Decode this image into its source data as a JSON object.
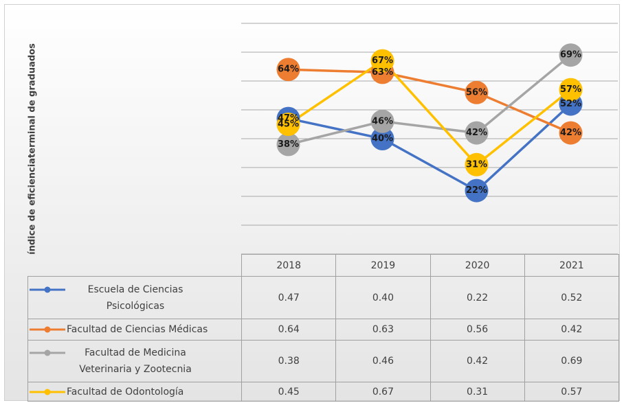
{
  "chart_data": {
    "type": "line",
    "y_axis_label": "índice de eficienciaterminal de graduados",
    "categories": [
      "2018",
      "2019",
      "2020",
      "2021"
    ],
    "ylim": [
      0,
      0.8
    ],
    "yticks": [
      0,
      0.1,
      0.2,
      0.3,
      0.4,
      0.5,
      0.6,
      0.7,
      0.8
    ],
    "grid": true,
    "series": [
      {
        "name": "Escuela de Ciencias Psicológicas",
        "color": "#4472c4",
        "values": [
          0.47,
          0.4,
          0.22,
          0.52
        ],
        "value_labels": [
          "47%",
          "40%",
          "22%",
          "52%"
        ],
        "table_labels": [
          "0.47",
          "0.40",
          "0.22",
          "0.52"
        ]
      },
      {
        "name": "Facultad de Ciencias Médicas",
        "color": "#ed7d31",
        "values": [
          0.64,
          0.63,
          0.56,
          0.42
        ],
        "value_labels": [
          "64%",
          "63%",
          "56%",
          "42%"
        ],
        "table_labels": [
          "0.64",
          "0.63",
          "0.56",
          "0.42"
        ]
      },
      {
        "name": "Facultad de Medicina Veterinaria y Zootecnia",
        "color": "#a5a5a5",
        "values": [
          0.38,
          0.46,
          0.42,
          0.69
        ],
        "value_labels": [
          "38%",
          "46%",
          "42%",
          "69%"
        ],
        "table_labels": [
          "0.38",
          "0.46",
          "0.42",
          "0.69"
        ]
      },
      {
        "name": "Facultad de Odontología",
        "color": "#ffc000",
        "values": [
          0.45,
          0.67,
          0.31,
          0.57
        ],
        "value_labels": [
          "45%",
          "67%",
          "31%",
          "57%"
        ],
        "table_labels": [
          "0.45",
          "0.67",
          "0.31",
          "0.57"
        ]
      }
    ]
  }
}
